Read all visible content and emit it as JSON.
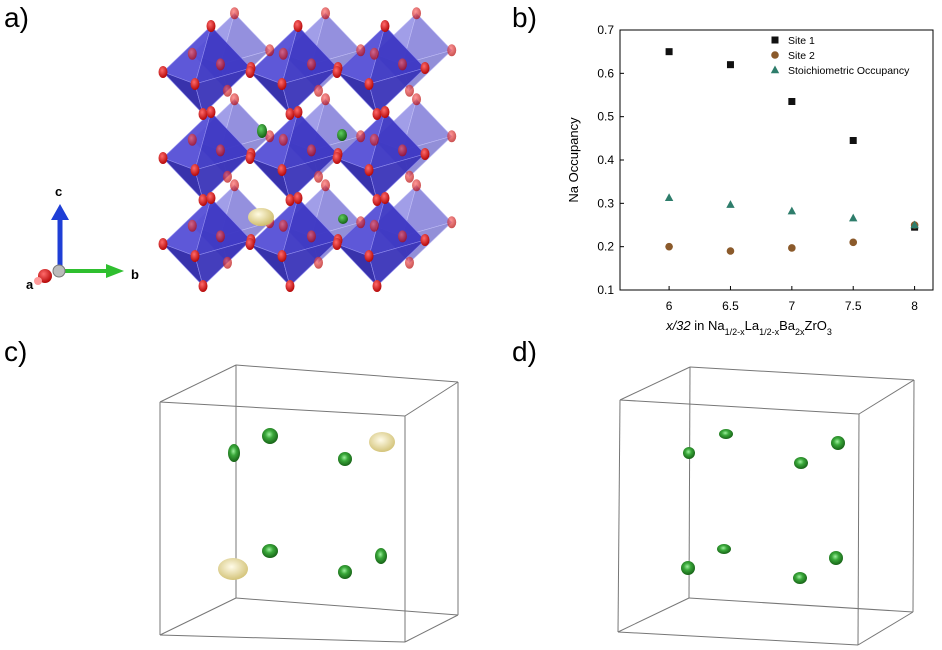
{
  "panels": {
    "a": "a)",
    "b": "b)",
    "c": "c)",
    "d": "d)"
  },
  "axes_triad": {
    "c": "c",
    "b": "b",
    "a": "a"
  },
  "colors": {
    "octahedron": "#3b35c8",
    "oxygen": "#d90f0f",
    "na_site": "#1c7d1c",
    "la_site": "#e8d98a",
    "site1": "#111111",
    "site2": "#8b5a2b",
    "stoich": "#2e7d6b"
  },
  "chart_data": {
    "type": "scatter",
    "title": "",
    "xlabel_parts": [
      "x/32 in Na",
      "1/2-x",
      "La",
      "1/2-x",
      "Ba",
      "2x",
      "ZrO",
      "3"
    ],
    "ylabel": "Na Occupancy",
    "xlim": [
      5.6,
      8.15
    ],
    "ylim": [
      0.1,
      0.7
    ],
    "xticks": [
      "6",
      "6.5",
      "7",
      "7.5",
      "8"
    ],
    "xtick_values": [
      6,
      6.5,
      7,
      7.5,
      8
    ],
    "yticks": [
      "0.1",
      "0.2",
      "0.3",
      "0.4",
      "0.5",
      "0.6",
      "0.7"
    ],
    "ytick_values": [
      0.1,
      0.2,
      0.3,
      0.4,
      0.5,
      0.6,
      0.7
    ],
    "legend_position": "top-right",
    "series": [
      {
        "name": "Site 1",
        "marker": "square",
        "color": "#111111",
        "x": [
          6,
          6.5,
          7,
          7.5,
          8
        ],
        "y": [
          0.65,
          0.62,
          0.535,
          0.445,
          0.245
        ]
      },
      {
        "name": "Site 2",
        "marker": "circle",
        "color": "#8b5a2b",
        "x": [
          6,
          6.5,
          7,
          7.5,
          8
        ],
        "y": [
          0.2,
          0.19,
          0.197,
          0.21,
          0.25
        ]
      },
      {
        "name": "Stoichiometric Occupancy",
        "marker": "triangle",
        "color": "#2e7d6b",
        "x": [
          6,
          6.5,
          7,
          7.5,
          8
        ],
        "y": [
          0.313,
          0.297,
          0.282,
          0.266,
          0.25
        ]
      }
    ]
  }
}
